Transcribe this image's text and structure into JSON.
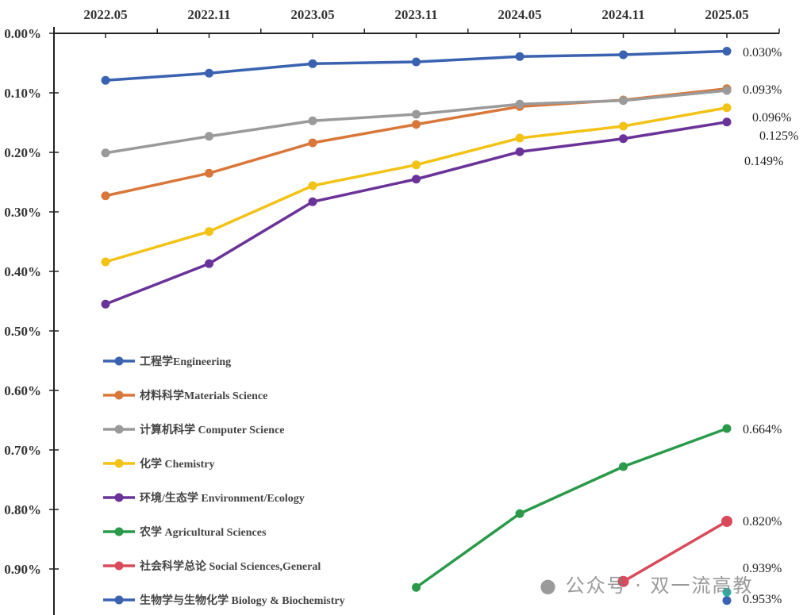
{
  "chart_data": {
    "type": "line",
    "title": "",
    "xlabel": "",
    "ylabel": "",
    "y_inverted": true,
    "ylim": [
      0,
      1.0
    ],
    "y_unit": "%",
    "x_axis_position": "top",
    "grid": false,
    "legend_placement": "bottom-left",
    "categories": [
      "2022.05",
      "2022.11",
      "2023.05",
      "2023.11",
      "2024.05",
      "2024.11",
      "2025.05"
    ],
    "y_ticks": [
      "0.00%",
      "0.10%",
      "0.20%",
      "0.30%",
      "0.40%",
      "0.50%",
      "0.60%",
      "0.70%",
      "0.80%",
      "0.90%"
    ],
    "y_tick_values": [
      0,
      0.1,
      0.2,
      0.3,
      0.4,
      0.5,
      0.6,
      0.7,
      0.8,
      0.9
    ],
    "series": [
      {
        "name": "工程学Engineering",
        "color": "#3a62b0",
        "values": [
          0.079,
          0.067,
          0.051,
          0.048,
          0.039,
          0.036,
          0.03
        ],
        "end_label": "0.030%"
      },
      {
        "name": "材料科学Materials Science",
        "color": "#d9773a",
        "values": [
          0.273,
          0.235,
          0.184,
          0.153,
          0.123,
          0.112,
          0.093
        ],
        "end_label": "0.093%"
      },
      {
        "name": "计算机科学 Computer Science",
        "color": "#9a9a9a",
        "values": [
          0.201,
          0.173,
          0.147,
          0.136,
          0.119,
          0.113,
          0.096
        ],
        "end_label": "0.096%"
      },
      {
        "name": "化学 Chemistry",
        "color": "#f2c215",
        "values": [
          0.384,
          0.333,
          0.256,
          0.221,
          0.176,
          0.156,
          0.125
        ],
        "end_label": "0.125%"
      },
      {
        "name": "环境/生态学 Environment/Ecology",
        "color": "#6a3399",
        "values": [
          0.455,
          0.387,
          0.283,
          0.245,
          0.199,
          0.177,
          0.149
        ],
        "end_label": "0.149%"
      },
      {
        "name": "农学 Agricultural Sciences",
        "color": "#2a9a4a",
        "values": [
          null,
          null,
          null,
          0.931,
          0.807,
          0.728,
          0.664
        ],
        "end_label": "0.664%"
      },
      {
        "name": "社会科学总论 Social Sciences,General",
        "color": "#d94a5a",
        "values": [
          null,
          null,
          null,
          null,
          null,
          0.921,
          0.82
        ],
        "end_label": "0.820%"
      },
      {
        "name": "生物学与生物化学 Biology & Biochemistry",
        "color": "#3a62b0",
        "values": [
          null,
          null,
          null,
          null,
          null,
          null,
          0.953
        ],
        "end_label": "0.953%"
      }
    ],
    "extra_points": [
      {
        "category": "2025.05",
        "value": 0.939,
        "color": "#2ab0a8",
        "label": "0.939%"
      }
    ]
  },
  "watermark": "公众号 · 双一流高教"
}
